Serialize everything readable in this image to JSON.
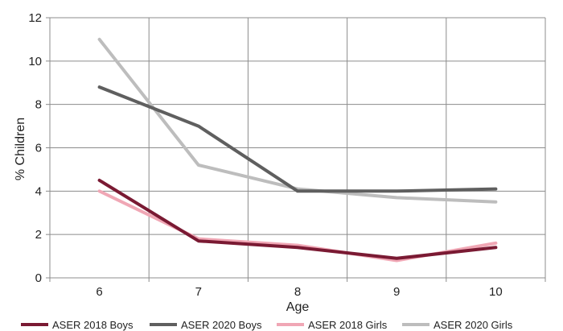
{
  "chart_data": {
    "type": "line",
    "xlabel": "Age",
    "ylabel": "% Children",
    "categories": [
      "6",
      "7",
      "8",
      "9",
      "10"
    ],
    "ylim": [
      0,
      12
    ],
    "yticks": [
      "0",
      "2",
      "4",
      "6",
      "8",
      "10",
      "12"
    ],
    "grid": true,
    "legend_position": "bottom",
    "series": [
      {
        "name": "ASER 2018 Boys",
        "values": [
          4.5,
          1.7,
          1.4,
          0.9,
          1.4
        ],
        "color": "#7a1a33"
      },
      {
        "name": "ASER 2020 Boys",
        "values": [
          8.8,
          7.0,
          4.0,
          4.0,
          4.1
        ],
        "color": "#5f5f5f"
      },
      {
        "name": "ASER 2018 Girls",
        "values": [
          4.0,
          1.8,
          1.5,
          0.8,
          1.6
        ],
        "color": "#f0a7b5"
      },
      {
        "name": "ASER 2020 Girls",
        "values": [
          11.0,
          5.2,
          4.1,
          3.7,
          3.5
        ],
        "color": "#bdbdbd"
      }
    ]
  }
}
